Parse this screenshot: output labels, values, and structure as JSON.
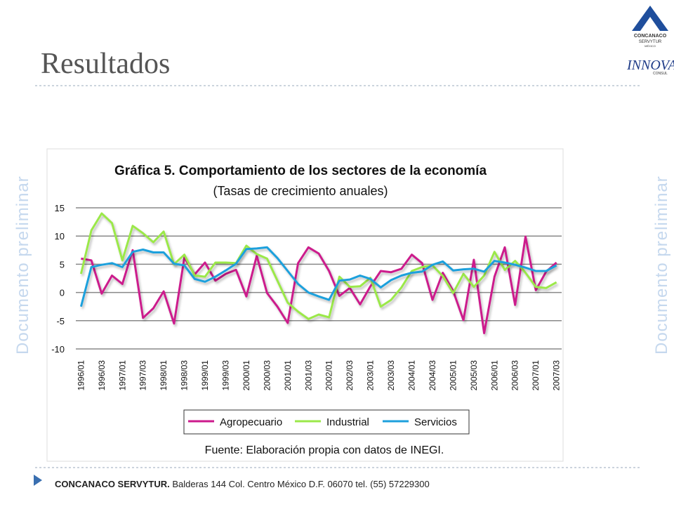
{
  "slide": {
    "title": "Resultados",
    "watermark_left": "Documento preliminar",
    "watermark_right": "Documento preliminar",
    "logo": {
      "brand": "CONCANACO",
      "sub": "SERVYTUR",
      "country": "MÉXICO",
      "partner": "INNOVA",
      "partner_sub": "CONSUL"
    },
    "footer": {
      "org": "CONCANACO SERVYTUR.",
      "address": "Balderas 144 Col. Centro México D.F. 06070 tel. (55) 57229300"
    }
  },
  "chart_data": {
    "type": "line",
    "title": "Gráfica 5. Comportamiento de los sectores de la economía",
    "subtitle": "(Tasas de crecimiento anuales)",
    "source": "Fuente: Elaboración  propia con datos de INEGI.",
    "categories": [
      "1996/01",
      null,
      "1996/03",
      null,
      "1997/01",
      null,
      "1997/03",
      null,
      "1998/01",
      null,
      "1998/03",
      null,
      "1999/01",
      null,
      "1999/03",
      null,
      "2000/01",
      null,
      "2000/03",
      null,
      "2001/01",
      null,
      "2001/03",
      null,
      "2002/01",
      null,
      "2002/03",
      null,
      "2003/01",
      null,
      "2003/03",
      null,
      "2004/01",
      null,
      "2004/03",
      null,
      "2005/01",
      null,
      "2005/03",
      null,
      "2006/01",
      null,
      "2006/03",
      null,
      "2007/01",
      null,
      "2007/03"
    ],
    "series": [
      {
        "name": "Agropecuario",
        "color": "#cc1a8c",
        "values": [
          6.0,
          5.7,
          -0.2,
          3.0,
          1.5,
          7.5,
          -4.5,
          -2.8,
          0.2,
          -5.5,
          6.2,
          3.2,
          5.3,
          2.1,
          3.3,
          4.0,
          -0.7,
          6.5,
          -0.1,
          -2.5,
          -5.4,
          5.2,
          8.0,
          6.9,
          3.8,
          -0.6,
          0.8,
          -2.1,
          1.1,
          3.8,
          3.6,
          4.2,
          6.7,
          5.2,
          -1.3,
          3.5,
          0.3,
          -4.9,
          5.8,
          -7.2,
          2.8,
          8.0,
          -2.2,
          9.9,
          0.4,
          3.7,
          5.3
        ]
      },
      {
        "name": "Industrial",
        "color": "#9be84a",
        "values": [
          3.3,
          11.0,
          14.0,
          12.3,
          5.7,
          11.8,
          10.5,
          8.9,
          10.8,
          5.0,
          6.7,
          3.0,
          2.8,
          5.3,
          5.3,
          5.2,
          8.3,
          6.8,
          6.0,
          2.1,
          -1.8,
          -3.4,
          -4.7,
          -3.9,
          -4.4,
          2.8,
          1.0,
          1.1,
          2.6,
          -2.5,
          -1.3,
          0.9,
          3.8,
          4.5,
          4.8,
          2.9,
          -0.1,
          3.3,
          1.0,
          3.0,
          7.2,
          4.0,
          5.6,
          3.5,
          1.0,
          0.8,
          1.8
        ]
      },
      {
        "name": "Servicios",
        "color": "#1ea0dc",
        "values": [
          -2.5,
          4.5,
          4.9,
          5.2,
          4.5,
          7.2,
          7.6,
          7.1,
          7.1,
          5.1,
          4.8,
          2.4,
          1.9,
          2.8,
          3.9,
          5.1,
          7.7,
          7.8,
          8.0,
          6.1,
          3.8,
          1.5,
          0.0,
          -0.7,
          -1.3,
          2.1,
          2.3,
          3.0,
          2.4,
          0.9,
          2.2,
          3.0,
          3.5,
          3.7,
          4.9,
          5.5,
          3.9,
          4.1,
          4.2,
          3.7,
          5.6,
          5.3,
          4.9,
          4.4,
          3.8,
          3.8,
          4.8
        ]
      }
    ],
    "ylim": [
      -10,
      15
    ],
    "yticks": [
      -10,
      -5,
      0,
      5,
      10,
      15
    ],
    "grid": true,
    "legend": "bottom"
  }
}
